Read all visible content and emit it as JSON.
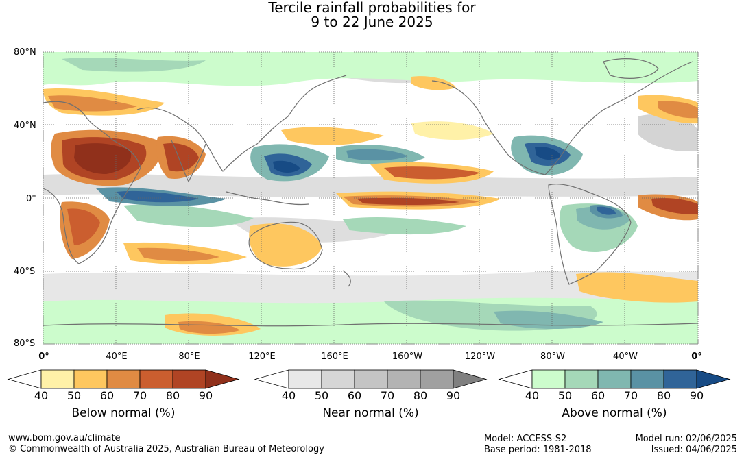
{
  "title": {
    "line1": "Tercile rainfall probabilities for",
    "line2": "9 to 22 June 2025"
  },
  "map": {
    "lat_labels": [
      "80°N",
      "40°N",
      "0°",
      "40°S",
      "80°S"
    ],
    "lon_labels": [
      "0°",
      "40°E",
      "80°E",
      "120°E",
      "160°E",
      "160°W",
      "120°W",
      "80°W",
      "40°W",
      "0°"
    ],
    "coastline_color": "#707070",
    "grid_style": "dotted"
  },
  "colorbars": [
    {
      "name": "Below normal (%)",
      "ticks": [
        "40",
        "50",
        "60",
        "70",
        "80",
        "90"
      ],
      "colors": [
        "#fff1a8",
        "#fec75f",
        "#e08b43",
        "#cb5e2f",
        "#b04424",
        "#90301b"
      ]
    },
    {
      "name": "Near normal (%)",
      "ticks": [
        "40",
        "50",
        "60",
        "70",
        "80",
        "90"
      ],
      "colors": [
        "#e8e8e8",
        "#d6d6d6",
        "#c4c4c4",
        "#b3b3b3",
        "#a0a0a0",
        "#808080"
      ]
    },
    {
      "name": "Above normal (%)",
      "ticks": [
        "40",
        "50",
        "60",
        "70",
        "80",
        "90"
      ],
      "colors": [
        "#ccfccc",
        "#a5d8b8",
        "#80b7b0",
        "#5a92a4",
        "#306498",
        "#174b85"
      ]
    }
  ],
  "footer": {
    "url": "www.bom.gov.au/climate",
    "copyright": "© Commonwealth of Australia 2025, Australian Bureau of Meteorology",
    "model": "Model: ACCESS-S2",
    "base_period": "Base period: 1981-2018",
    "model_run": "Model run: 02/06/2025",
    "issued": "Issued: 04/06/2025"
  }
}
